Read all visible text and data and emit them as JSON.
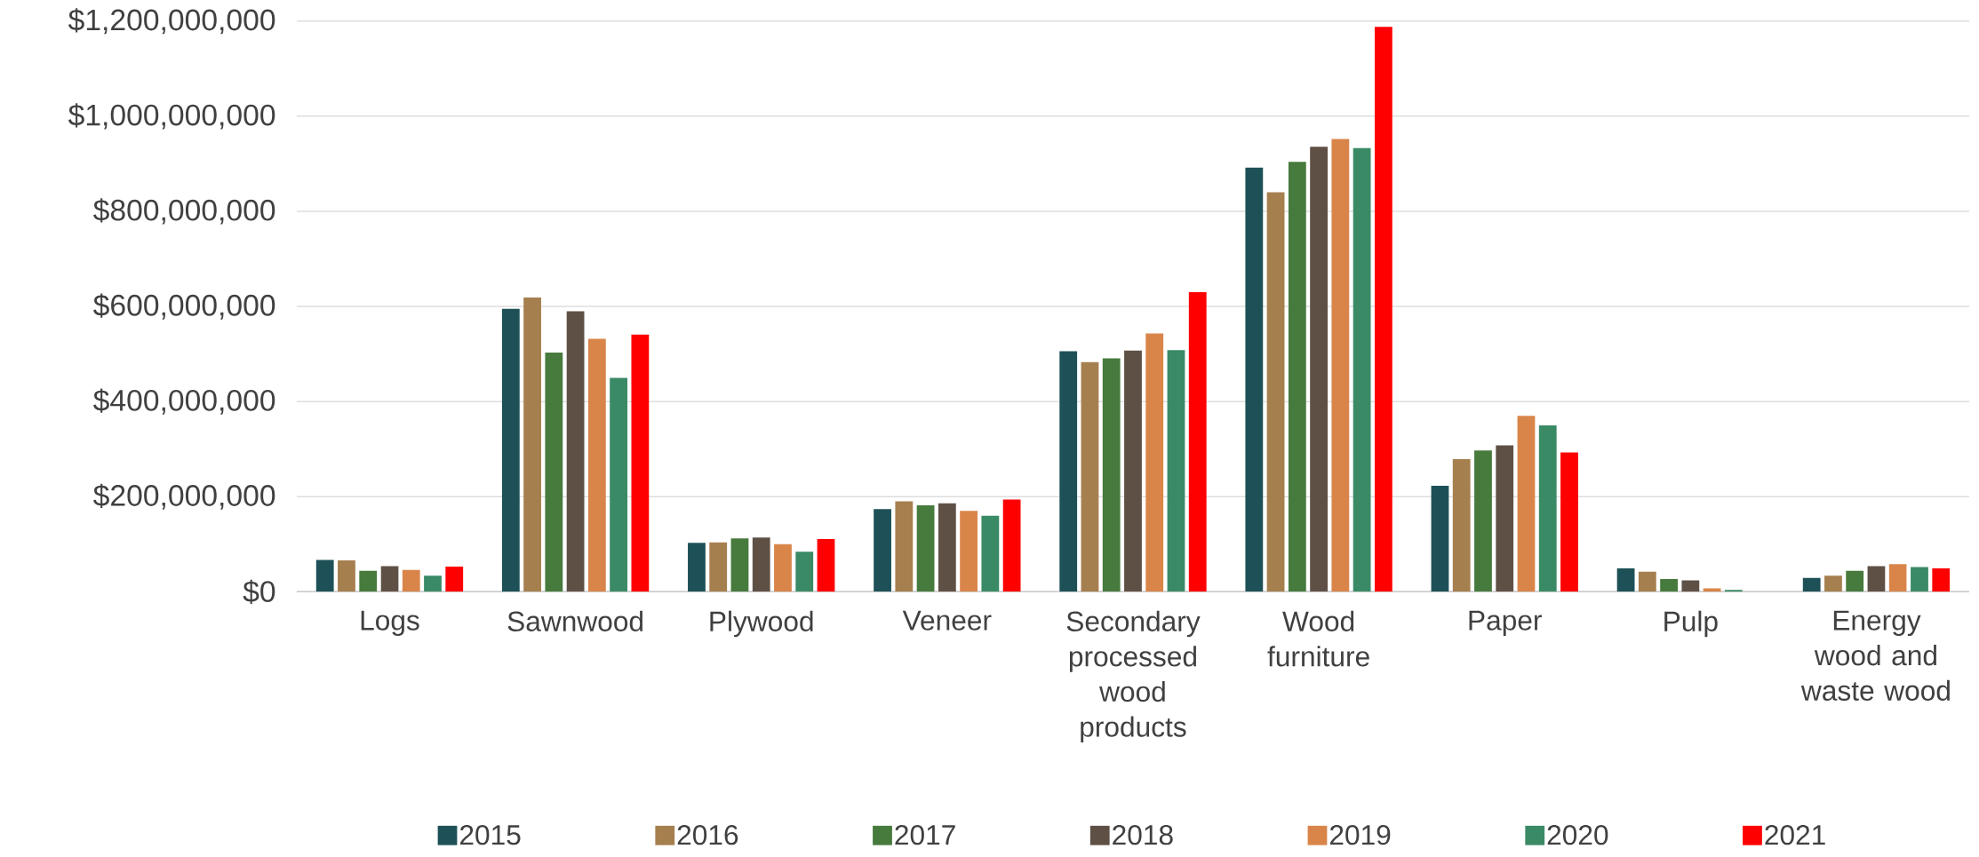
{
  "chart_data": {
    "type": "bar",
    "categories": [
      "Logs",
      "Sawnwood",
      "Plywood",
      "Veneer",
      "Secondary processed wood products",
      "Wood furniture",
      "Paper",
      "Pulp",
      "Energy wood and waste wood"
    ],
    "series": [
      {
        "name": "2015",
        "color": "#1d5157",
        "values": [
          67000000,
          595000000,
          103000000,
          174000000,
          506000000,
          892000000,
          223000000,
          49000000,
          29000000
        ]
      },
      {
        "name": "2016",
        "color": "#a67f4f",
        "values": [
          66000000,
          619000000,
          104000000,
          190000000,
          483000000,
          840000000,
          279000000,
          42000000,
          34000000
        ]
      },
      {
        "name": "2017",
        "color": "#477a3d",
        "values": [
          44000000,
          503000000,
          112000000,
          182000000,
          491000000,
          904000000,
          297000000,
          27000000,
          44000000
        ]
      },
      {
        "name": "2018",
        "color": "#5f5046",
        "values": [
          54000000,
          590000000,
          114000000,
          186000000,
          507000000,
          936000000,
          308000000,
          24000000,
          54000000
        ]
      },
      {
        "name": "2019",
        "color": "#d9854a",
        "values": [
          46000000,
          532000000,
          100000000,
          170000000,
          543000000,
          952000000,
          370000000,
          7000000,
          58000000
        ]
      },
      {
        "name": "2020",
        "color": "#3a8a66",
        "values": [
          34000000,
          450000000,
          84000000,
          160000000,
          508000000,
          933000000,
          350000000,
          4000000,
          52000000
        ]
      },
      {
        "name": "2021",
        "color": "#ff0000",
        "values": [
          53000000,
          541000000,
          111000000,
          194000000,
          630000000,
          1188000000,
          293000000,
          0,
          49000000
        ]
      }
    ],
    "ylim": [
      0,
      1200000000
    ],
    "yticks": [
      {
        "value": 0,
        "label": "$0"
      },
      {
        "value": 200000000,
        "label": "$200,000,000"
      },
      {
        "value": 400000000,
        "label": "$400,000,000"
      },
      {
        "value": 600000000,
        "label": "$600,000,000"
      },
      {
        "value": 800000000,
        "label": "$800,000,000"
      },
      {
        "value": 1000000000,
        "label": "$1,000,000,000"
      },
      {
        "value": 1200000000,
        "label": "$1,200,000,000"
      }
    ],
    "grid": "y",
    "legend": "bottom"
  }
}
